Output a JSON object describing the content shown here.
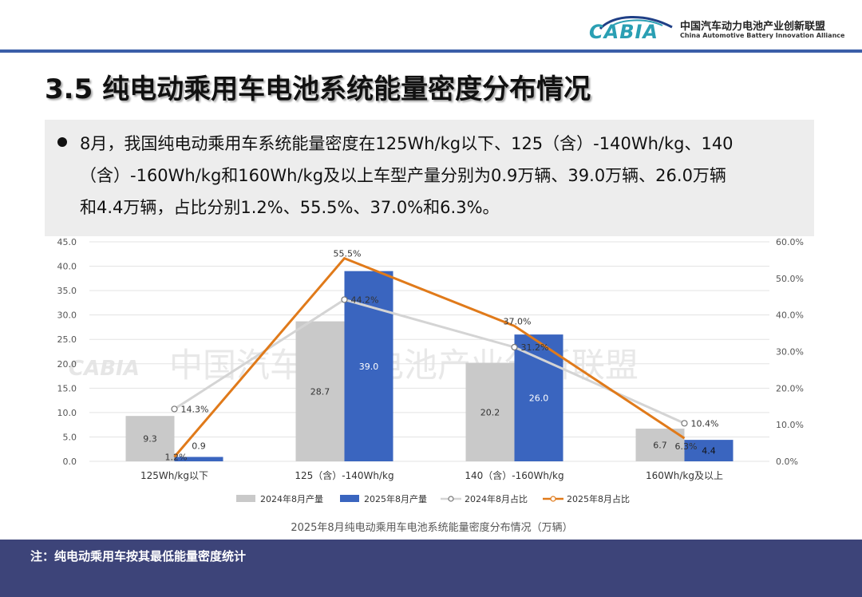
{
  "logo": {
    "word": "CABIA",
    "cn": "中国汽车动力电池产业创新联盟",
    "en": "China Automotive Battery Innovation Alliance"
  },
  "page": {
    "title": "3.5 纯电动乘用车电池系统能量密度分布情况",
    "paragraph_lines": [
      "8月，我国纯电动乘用车系统能量密度在125Wh/kg以下、125（含）-140Wh/kg、140",
      "（含）-160Wh/kg和160Wh/kg及以上车型产量分别为0.9万辆、39.0万辆、26.0万辆",
      "和4.4万辆，占比分别1.2%、55.5%、37.0%和6.3%。"
    ],
    "footnote": "注：纯电动乘用车按其最低能量密度统计"
  },
  "watermark": {
    "word": "CABIA",
    "cn": "中国汽车动力电池产业创新联盟"
  },
  "colors": {
    "bar_2024": "#c9c9c9",
    "bar_2025": "#3a65bf",
    "line_2024": "#d4d4d4",
    "line_2025": "#e07a1a",
    "header_bar": "#3b5ea8",
    "footer": "#3d4479"
  },
  "chart_data": {
    "type": "bar",
    "title": "2025年8月纯电动乘用车电池系统能量密度分布情况（万辆）",
    "categories": [
      "125Wh/kg以下",
      "125（含）-140Wh/kg",
      "140（含）-160Wh/kg",
      "160Wh/kg及以上"
    ],
    "series": [
      {
        "name": "2024年8月产量",
        "type": "bar",
        "axis": "left",
        "values": [
          9.3,
          28.7,
          20.2,
          6.7
        ],
        "labels": [
          "9.3",
          "28.7",
          "20.2",
          "6.7"
        ]
      },
      {
        "name": "2025年8月产量",
        "type": "bar",
        "axis": "left",
        "values": [
          0.9,
          39.0,
          26.0,
          4.4
        ],
        "labels": [
          "0.9",
          "39.0",
          "26.0",
          "4.4"
        ]
      },
      {
        "name": "2024年8月占比",
        "type": "line",
        "axis": "right",
        "values": [
          14.3,
          44.2,
          31.2,
          10.4
        ],
        "labels": [
          "14.3%",
          "44.2%",
          "31.2%",
          "10.4%"
        ]
      },
      {
        "name": "2025年8月占比",
        "type": "line",
        "axis": "right",
        "values": [
          1.2,
          55.5,
          37.0,
          6.3
        ],
        "labels": [
          "1.2%",
          "55.5%",
          "37.0%",
          "6.3%"
        ]
      }
    ],
    "ylim": [
      0,
      45
    ],
    "y_ticks": [
      "0.0",
      "5.0",
      "10.0",
      "15.0",
      "20.0",
      "25.0",
      "30.0",
      "35.0",
      "40.0",
      "45.0"
    ],
    "y2lim": [
      0,
      60
    ],
    "y2_ticks": [
      "0.0%",
      "10.0%",
      "20.0%",
      "30.0%",
      "40.0%",
      "50.0%",
      "60.0%"
    ],
    "grid": true,
    "legend_position": "bottom"
  }
}
